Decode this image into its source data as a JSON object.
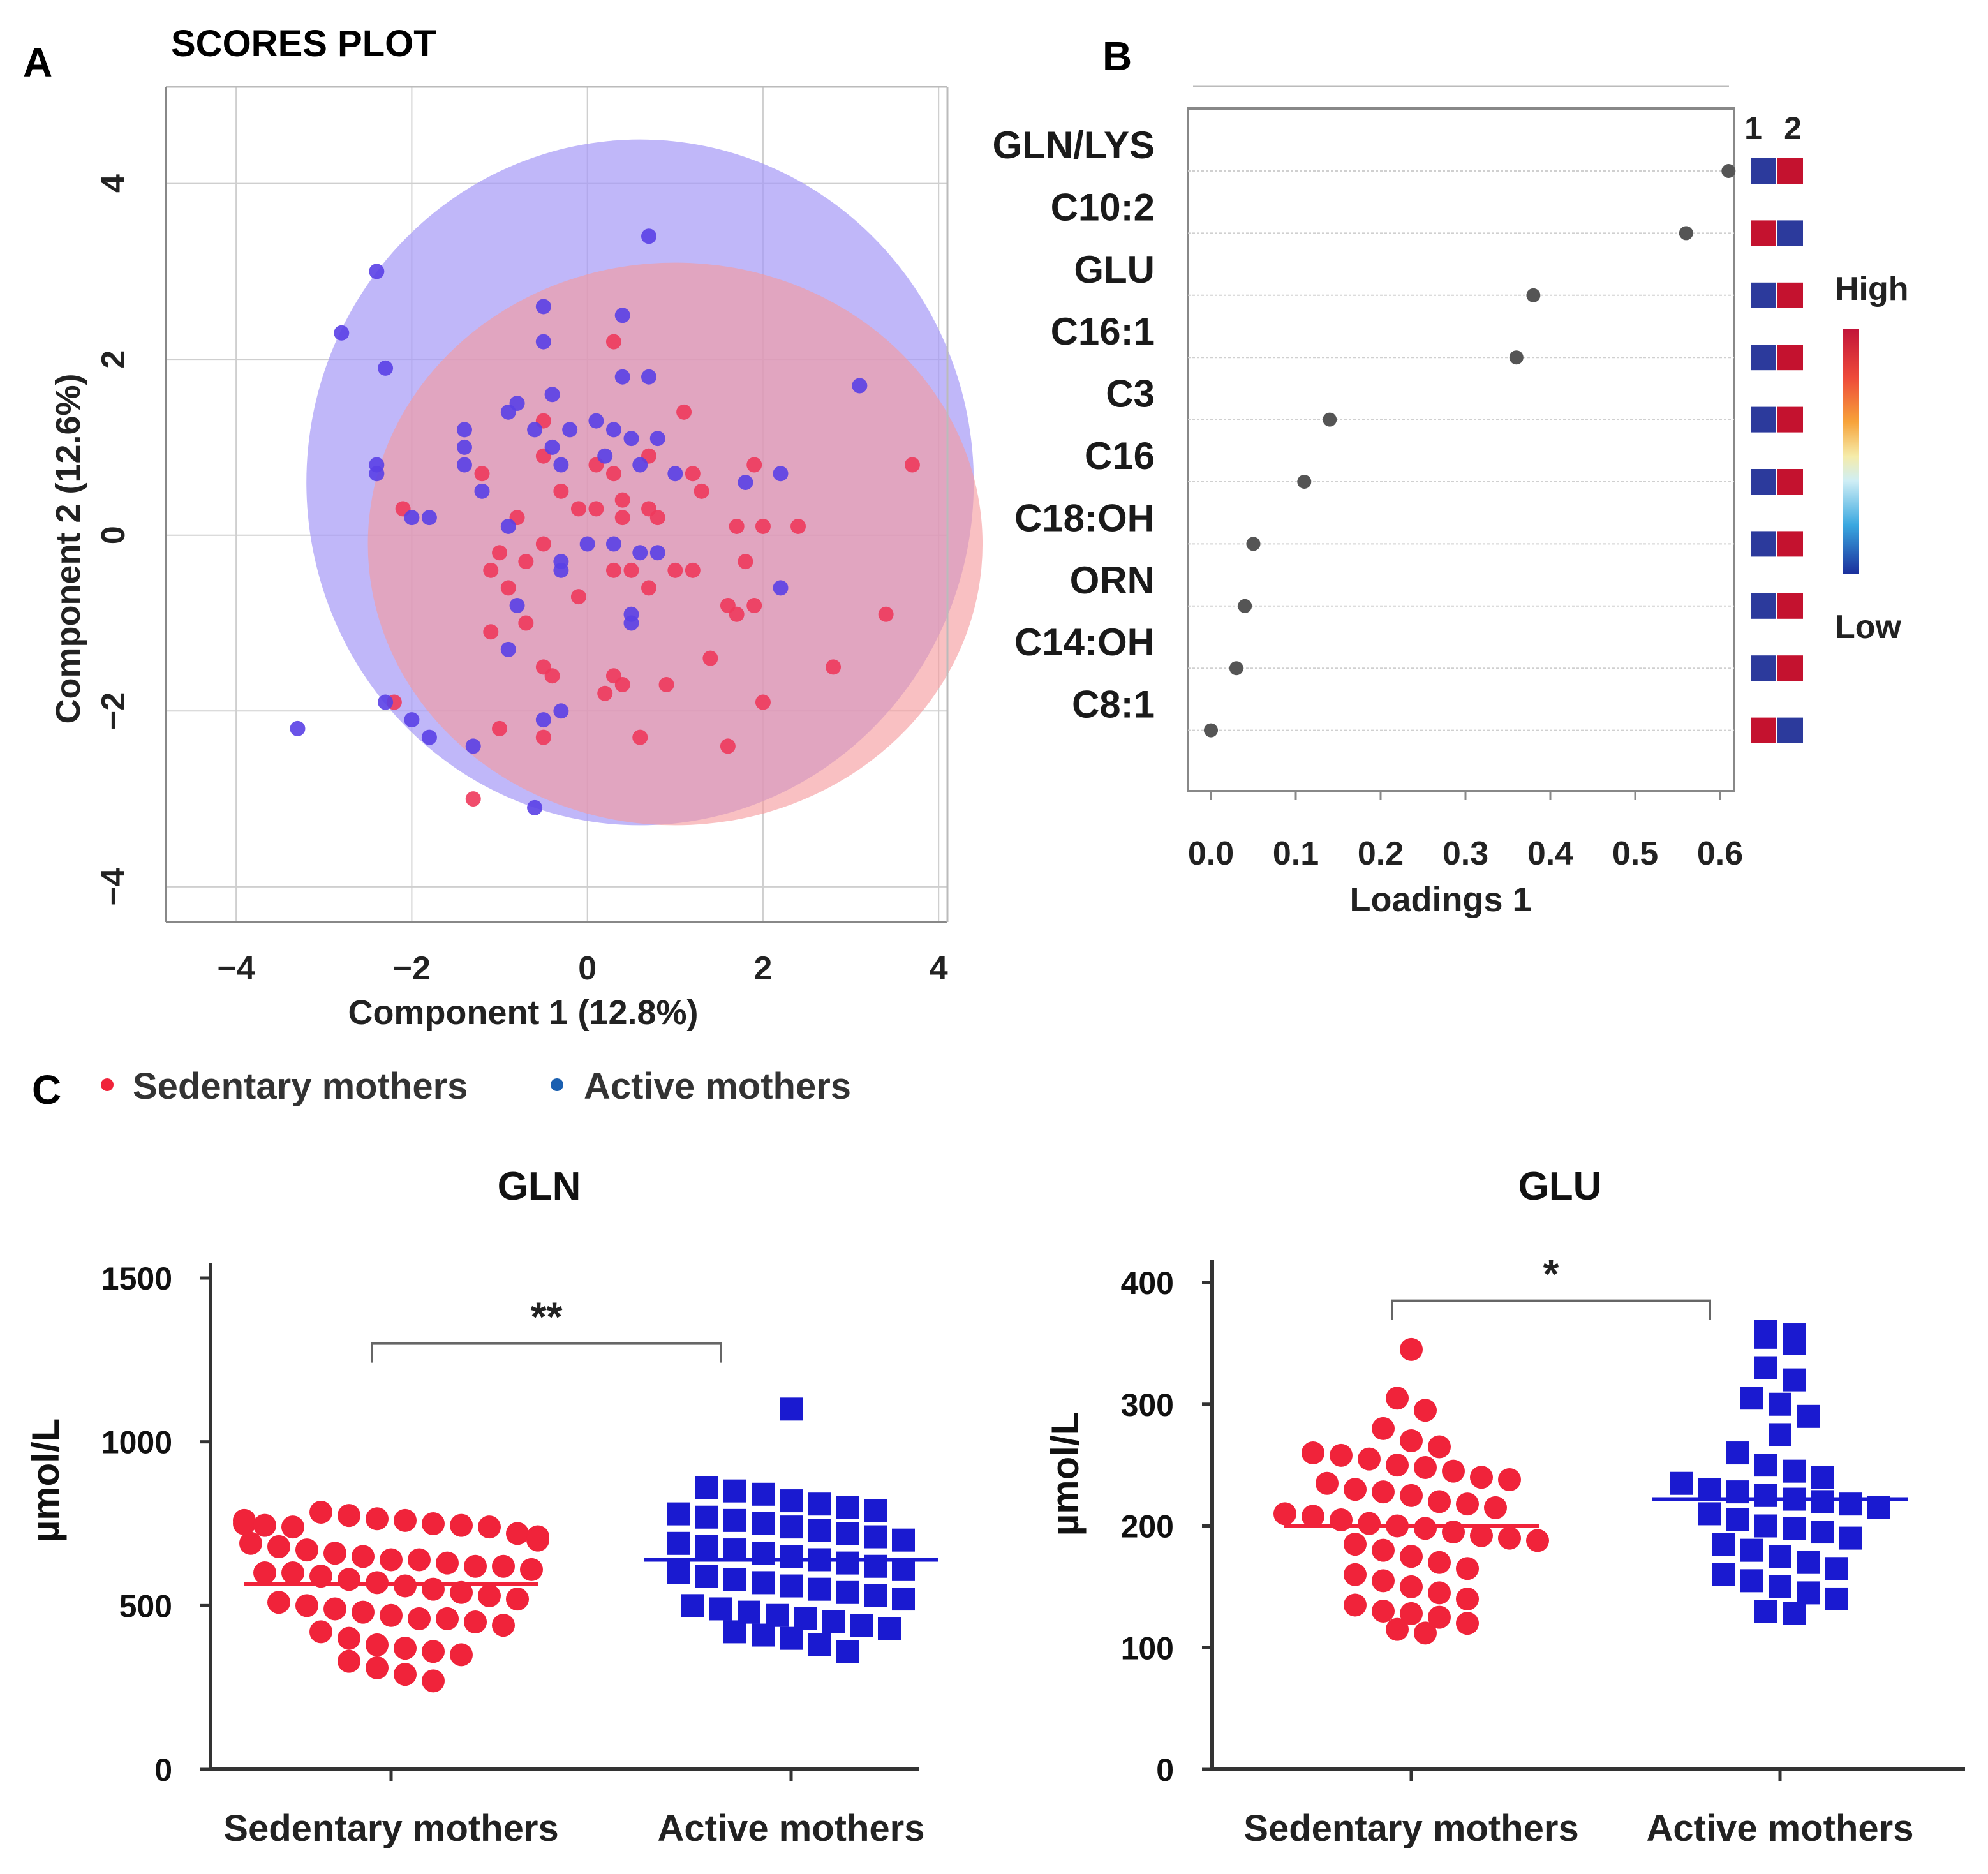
{
  "colors": {
    "sedentary": "#f0233a",
    "active": "#1a1ad0",
    "pointRed": "#ee3a5c",
    "pointBlue": "#5a40e6",
    "ellipseRed": "#f59a9c",
    "ellipseBlue": "#a598f6",
    "frame": "#888888",
    "grid": "#cfcfcf"
  },
  "chart_data": [
    {
      "panel": "A",
      "type": "scatter",
      "title": "SCORES PLOT",
      "xlabel": "Component 1 (12.8%)",
      "ylabel": "Component 2 (12.6%)",
      "xlim": [
        -4.8,
        4.1
      ],
      "ylim": [
        -4.4,
        5.1
      ],
      "xticks": [
        "−4",
        "−2",
        "0",
        "2",
        "4"
      ],
      "yticks": [
        "4",
        "2",
        "0",
        "−2",
        "−4"
      ],
      "tick_values": [
        -4,
        -2,
        0,
        2,
        4
      ],
      "ellipses": [
        {
          "group": "Active mothers",
          "cx": 0.6,
          "cy": 0.6,
          "rx": 3.8,
          "ry": 3.9,
          "color": "blue"
        },
        {
          "group": "Sedentary mothers",
          "cx": 1.0,
          "cy": -0.1,
          "rx": 3.5,
          "ry": 3.2,
          "color": "red"
        }
      ],
      "series": [
        {
          "name": "Sedentary mothers",
          "color": "red",
          "points": [
            [
              0.3,
              2.2
            ],
            [
              -0.5,
              1.3
            ],
            [
              1.1,
              1.4
            ],
            [
              -0.5,
              0.9
            ],
            [
              0.1,
              0.8
            ],
            [
              0.3,
              0.7
            ],
            [
              0.7,
              0.9
            ],
            [
              1.2,
              0.7
            ],
            [
              -1.2,
              0.7
            ],
            [
              1.9,
              0.8
            ],
            [
              3.7,
              0.8
            ],
            [
              -2.1,
              0.3
            ],
            [
              -0.3,
              0.5
            ],
            [
              -0.1,
              0.3
            ],
            [
              0.1,
              0.3
            ],
            [
              0.4,
              0.4
            ],
            [
              0.7,
              0.3
            ],
            [
              1.3,
              0.5
            ],
            [
              2.4,
              0.1
            ],
            [
              -0.8,
              0.2
            ],
            [
              -0.5,
              -0.1
            ],
            [
              0.4,
              0.2
            ],
            [
              0.8,
              0.2
            ],
            [
              1.7,
              0.1
            ],
            [
              2.0,
              0.1
            ],
            [
              -1.0,
              -0.2
            ],
            [
              -0.7,
              -0.3
            ],
            [
              1.0,
              -0.4
            ],
            [
              1.2,
              -0.4
            ],
            [
              1.8,
              -0.3
            ],
            [
              -1.1,
              -0.4
            ],
            [
              0.3,
              -0.4
            ],
            [
              0.5,
              -0.4
            ],
            [
              -0.9,
              -0.6
            ],
            [
              -0.1,
              -0.7
            ],
            [
              0.7,
              -0.6
            ],
            [
              1.6,
              -0.8
            ],
            [
              1.7,
              -0.9
            ],
            [
              1.9,
              -0.8
            ],
            [
              3.4,
              -0.9
            ],
            [
              -1.1,
              -1.1
            ],
            [
              -0.7,
              -1.0
            ],
            [
              1.4,
              -1.4
            ],
            [
              2.8,
              -1.5
            ],
            [
              -0.4,
              -1.6
            ],
            [
              0.3,
              -1.6
            ],
            [
              0.4,
              -1.7
            ],
            [
              0.9,
              -1.7
            ],
            [
              0.2,
              -1.8
            ],
            [
              -2.2,
              -1.9
            ],
            [
              2.0,
              -1.9
            ],
            [
              -1.0,
              -2.2
            ],
            [
              -0.5,
              -2.3
            ],
            [
              0.6,
              -2.3
            ],
            [
              1.6,
              -2.4
            ],
            [
              -1.3,
              -3.0
            ],
            [
              -0.5,
              -1.5
            ]
          ]
        },
        {
          "name": "Active mothers",
          "color": "blue",
          "points": [
            [
              0.7,
              3.4
            ],
            [
              -2.4,
              3.0
            ],
            [
              -0.5,
              2.6
            ],
            [
              0.4,
              2.5
            ],
            [
              -2.8,
              2.3
            ],
            [
              -2.3,
              1.9
            ],
            [
              -0.5,
              2.2
            ],
            [
              0.4,
              1.8
            ],
            [
              0.7,
              1.8
            ],
            [
              -0.4,
              1.6
            ],
            [
              -0.8,
              1.5
            ],
            [
              -0.9,
              1.4
            ],
            [
              0.1,
              1.3
            ],
            [
              -1.4,
              1.2
            ],
            [
              3.1,
              1.7
            ],
            [
              -0.6,
              1.2
            ],
            [
              0.3,
              1.2
            ],
            [
              -0.2,
              1.2
            ],
            [
              0.5,
              1.1
            ],
            [
              0.8,
              1.1
            ],
            [
              -1.4,
              1.0
            ],
            [
              -0.4,
              1.0
            ],
            [
              0.2,
              0.9
            ],
            [
              0.6,
              0.8
            ],
            [
              -1.4,
              0.8
            ],
            [
              -0.3,
              0.8
            ],
            [
              -2.4,
              0.8
            ],
            [
              -2.4,
              0.7
            ],
            [
              -1.2,
              0.5
            ],
            [
              1.0,
              0.7
            ],
            [
              1.8,
              0.6
            ],
            [
              2.2,
              0.7
            ],
            [
              -2.0,
              0.2
            ],
            [
              -1.8,
              0.2
            ],
            [
              -0.9,
              0.1
            ],
            [
              0.3,
              -0.1
            ],
            [
              0.6,
              -0.2
            ],
            [
              -0.3,
              -0.3
            ],
            [
              0.8,
              -0.2
            ],
            [
              -0.3,
              -0.4
            ],
            [
              2.2,
              -0.6
            ],
            [
              -0.8,
              -0.8
            ],
            [
              0.5,
              -0.9
            ],
            [
              0.5,
              -1.0
            ],
            [
              -0.9,
              -1.3
            ],
            [
              -2.3,
              -1.9
            ],
            [
              -2.0,
              -2.1
            ],
            [
              -1.8,
              -2.3
            ],
            [
              -1.3,
              -2.4
            ],
            [
              -0.5,
              -2.1
            ],
            [
              -0.3,
              -2.0
            ],
            [
              -3.3,
              -2.2
            ],
            [
              -0.6,
              -3.1
            ],
            [
              0.0,
              -0.1
            ]
          ]
        }
      ]
    },
    {
      "panel": "B",
      "type": "scatter",
      "xlabel": "Loadings 1",
      "xlim": [
        0.0,
        0.6
      ],
      "xticks": [
        "0.0",
        "0.1",
        "0.2",
        "0.3",
        "0.4",
        "0.5",
        "0.6"
      ],
      "tick_values": [
        0.0,
        0.1,
        0.2,
        0.3,
        0.4,
        0.5,
        0.6
      ],
      "features": [
        "GLN/LYS",
        "C10:2",
        "GLU",
        "C16:1",
        "C3",
        "C16",
        "C18:OH",
        "ORN",
        "C14:OH",
        "C8:1"
      ],
      "values": [
        0.61,
        0.56,
        0.38,
        0.36,
        0.14,
        0.11,
        0.05,
        0.04,
        0.03,
        0.0
      ],
      "heat_header": [
        "1",
        "2"
      ],
      "heat_cells": [
        [
          "low",
          "high"
        ],
        [
          "high",
          "low"
        ],
        [
          "low",
          "high"
        ],
        [
          "low",
          "high"
        ],
        [
          "low",
          "high"
        ],
        [
          "low",
          "high"
        ],
        [
          "low",
          "high"
        ],
        [
          "low",
          "high"
        ],
        [
          "low",
          "high"
        ],
        [
          "high",
          "low"
        ]
      ],
      "legend": {
        "high": "High",
        "low": "Low"
      }
    },
    {
      "panel": "C",
      "type": "scatter",
      "title": "GLN",
      "ylabel": "µmol/L",
      "ylim": [
        0,
        1500
      ],
      "yticks": [
        "1500",
        "1000",
        "500",
        "0"
      ],
      "tick_values": [
        1500,
        1000,
        500,
        0
      ],
      "categories": [
        "Sedentary mothers",
        "Active mothers"
      ],
      "means": [
        565,
        640
      ],
      "significance": "**",
      "bracket_y": 1300,
      "series": [
        {
          "name": "Sedentary mothers",
          "shape": "circle",
          "values": [
            760,
            750,
            745,
            740,
            785,
            775,
            765,
            760,
            750,
            745,
            740,
            720,
            710,
            700,
            690,
            680,
            670,
            660,
            650,
            640,
            640,
            630,
            620,
            620,
            610,
            600,
            600,
            590,
            580,
            570,
            560,
            550,
            540,
            530,
            520,
            510,
            500,
            490,
            480,
            470,
            460,
            460,
            450,
            440,
            420,
            400,
            380,
            370,
            360,
            350,
            330,
            310,
            290,
            270
          ]
        },
        {
          "name": "Active mothers",
          "shape": "square",
          "values": [
            1100,
            860,
            850,
            840,
            820,
            810,
            800,
            790,
            780,
            770,
            760,
            750,
            740,
            730,
            720,
            710,
            700,
            690,
            680,
            670,
            660,
            650,
            640,
            630,
            620,
            610,
            600,
            590,
            580,
            570,
            560,
            550,
            540,
            530,
            520,
            500,
            490,
            480,
            470,
            460,
            450,
            440,
            430,
            420,
            410,
            400,
            380,
            360
          ]
        }
      ]
    },
    {
      "panel": "C",
      "type": "scatter",
      "title": "GLU",
      "ylabel": "µmol/L",
      "ylim": [
        0,
        400
      ],
      "yticks": [
        "400",
        "300",
        "200",
        "100",
        "0"
      ],
      "tick_values": [
        400,
        300,
        200,
        100,
        0
      ],
      "categories": [
        "Sedentary mothers",
        "Active mothers"
      ],
      "means": [
        200,
        222
      ],
      "significance": "*",
      "bracket_y": 385,
      "series": [
        {
          "name": "Sedentary mothers",
          "shape": "circle",
          "values": [
            345,
            305,
            295,
            280,
            270,
            265,
            260,
            258,
            255,
            250,
            248,
            245,
            240,
            238,
            235,
            230,
            228,
            225,
            220,
            218,
            215,
            210,
            208,
            205,
            202,
            200,
            198,
            195,
            192,
            190,
            188,
            185,
            180,
            175,
            170,
            165,
            160,
            155,
            150,
            145,
            140,
            135,
            130,
            128,
            125,
            120,
            115,
            112
          ]
        },
        {
          "name": "Active mothers",
          "shape": "square",
          "values": [
            360,
            357,
            355,
            350,
            330,
            320,
            305,
            300,
            290,
            275,
            260,
            250,
            245,
            240,
            235,
            230,
            228,
            225,
            222,
            220,
            218,
            215,
            210,
            205,
            200,
            198,
            195,
            190,
            185,
            180,
            175,
            170,
            165,
            160,
            155,
            150,
            145,
            140,
            130,
            128
          ]
        }
      ]
    }
  ],
  "panel_labels": {
    "a": "A",
    "b": "B",
    "c": "C"
  },
  "legend": {
    "sedentary": "Sedentary mothers",
    "active": "Active mothers"
  }
}
